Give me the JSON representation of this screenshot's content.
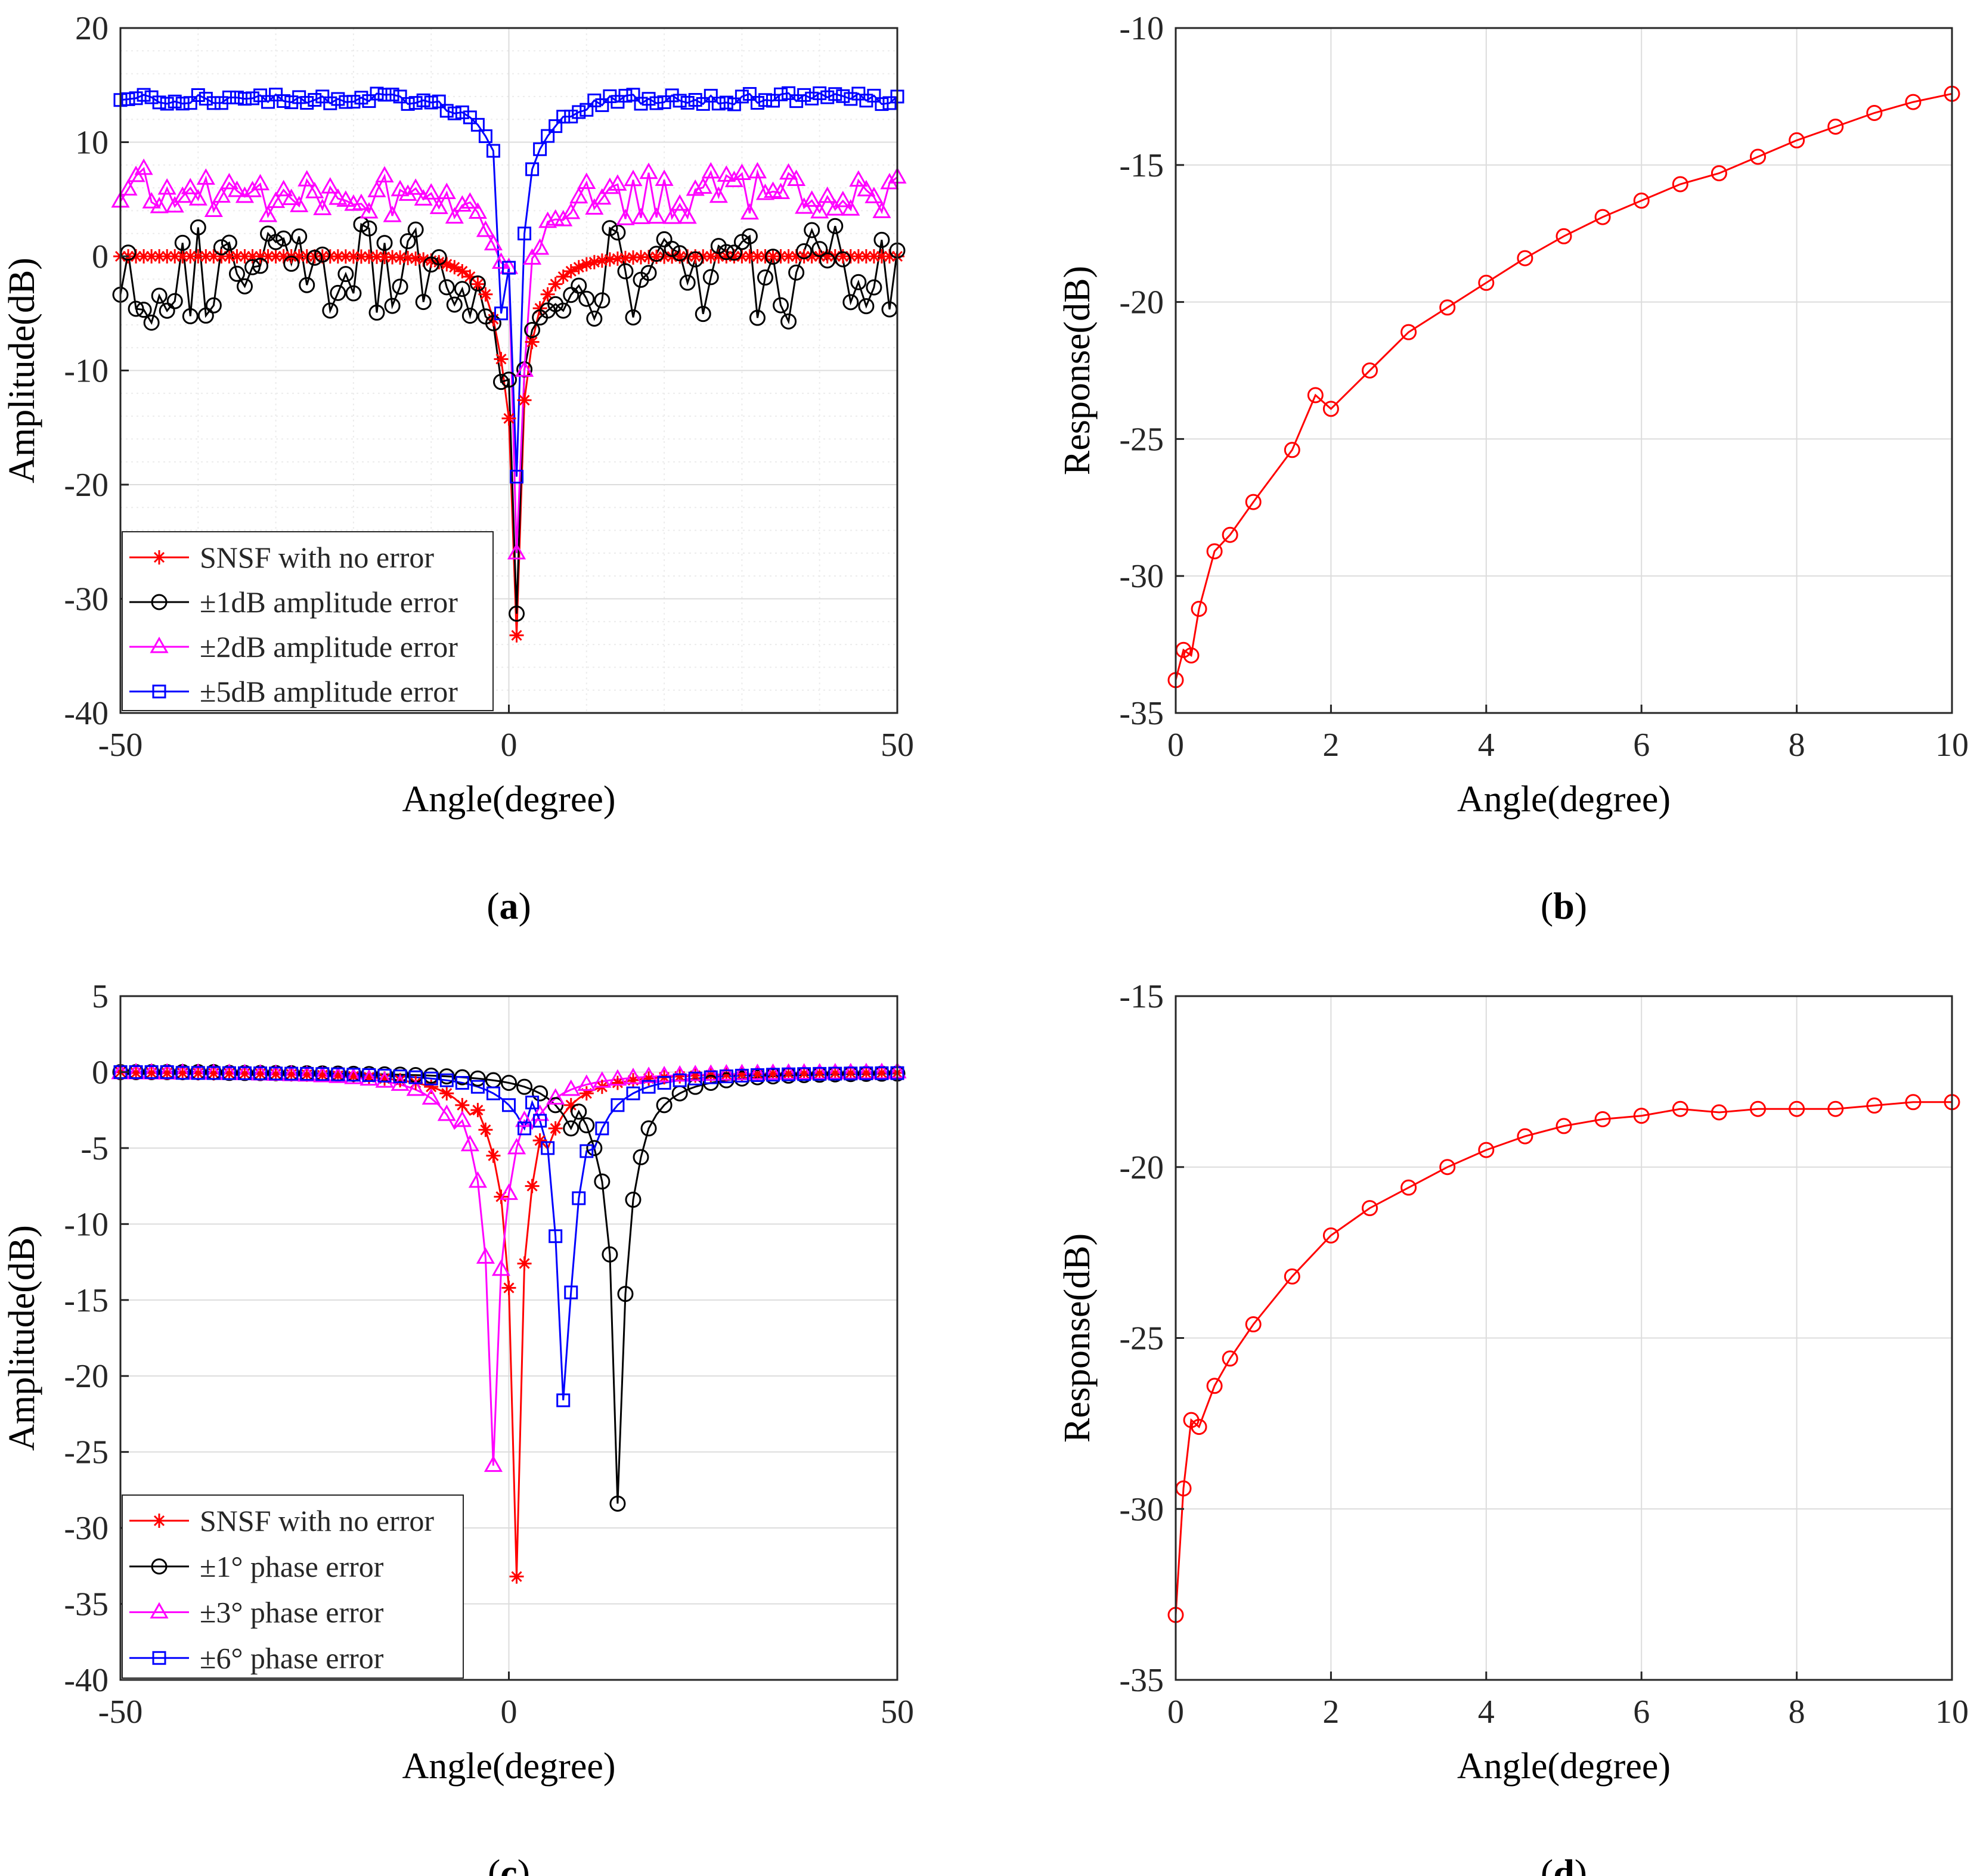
{
  "chart_data": [
    {
      "panel": "a",
      "caption": "(a)",
      "caption_letter": "a",
      "type": "line",
      "xlabel": "Angle(degree)",
      "ylabel": "Amplitude(dB)",
      "xlim": [
        -50,
        50
      ],
      "ylim": [
        -40,
        20
      ],
      "xticks": [
        -50,
        0,
        50
      ],
      "yticks": [
        20,
        10,
        0,
        -10,
        -20,
        -30,
        -40
      ],
      "grid": true,
      "minor_grid": true,
      "legend_position": "bottom-left",
      "series": [
        {
          "name": "SNSF with no error",
          "color": "#ff0000",
          "marker": "star",
          "profile": "null",
          "null_center": 1,
          "null_depth": -33.2,
          "baseline": 0,
          "noise": 0,
          "x_points": [
            -2,
            -1,
            0,
            1,
            2,
            3
          ],
          "y_points": [
            -5.5,
            -9.0,
            -14.2,
            -33.2,
            -12.6,
            -7.5
          ]
        },
        {
          "name": "±1dB amplitude error",
          "color": "#000000",
          "marker": "circle",
          "profile": "null",
          "null_center": 1,
          "null_depth": -31.3,
          "baseline": -1.5,
          "noise": 4.5,
          "x_points": [
            -1,
            0,
            1,
            2
          ],
          "y_points": [
            -11.0,
            -10.8,
            -31.3,
            -9.9
          ]
        },
        {
          "name": "±2dB amplitude error",
          "color": "#ff00ff",
          "marker": "triangle",
          "profile": "null",
          "null_center": 1,
          "null_depth": -26.0,
          "baseline": 5.5,
          "noise": 2.2,
          "x_points": [
            0,
            1,
            2
          ],
          "y_points": [
            -1.0,
            -26.0,
            -10.0
          ]
        },
        {
          "name": "±5dB amplitude error",
          "color": "#0000ff",
          "marker": "square",
          "profile": "null",
          "null_center": 1,
          "null_depth": -19.3,
          "baseline": 13.8,
          "noise": 0.5,
          "x_points": [
            -1,
            0,
            1,
            2
          ],
          "y_points": [
            -5.0,
            -1.0,
            -19.3,
            2.0
          ]
        }
      ]
    },
    {
      "panel": "b",
      "caption": "(b)",
      "caption_letter": "b",
      "type": "line",
      "xlabel": "Angle(degree)",
      "ylabel": "Response(dB)",
      "xlim": [
        0,
        10
      ],
      "ylim": [
        -35,
        -10
      ],
      "xticks": [
        0,
        2,
        4,
        6,
        8,
        10
      ],
      "yticks": [
        -10,
        -15,
        -20,
        -25,
        -30,
        -35
      ],
      "grid": true,
      "minor_grid": false,
      "series": [
        {
          "name": "response",
          "color": "#ff0000",
          "marker": "circle",
          "x": [
            0,
            0.1,
            0.2,
            0.3,
            0.5,
            0.7,
            1,
            1.5,
            1.8,
            2,
            2.5,
            3,
            3.5,
            4,
            4.5,
            5,
            5.5,
            6,
            6.5,
            7,
            7.5,
            8,
            8.5,
            9,
            9.5,
            10
          ],
          "y": [
            -33.8,
            -32.7,
            -32.9,
            -31.2,
            -29.1,
            -28.5,
            -27.3,
            -25.4,
            -23.4,
            -23.9,
            -22.5,
            -21.1,
            -20.2,
            -19.3,
            -18.4,
            -17.6,
            -16.9,
            -16.3,
            -15.7,
            -15.3,
            -14.7,
            -14.1,
            -13.6,
            -13.1,
            -12.7,
            -12.4
          ]
        }
      ]
    },
    {
      "panel": "c",
      "caption": "(c)",
      "caption_letter": "c",
      "type": "line",
      "xlabel": "Angle(degree)",
      "ylabel": "Amplitude(dB)",
      "xlim": [
        -50,
        50
      ],
      "ylim": [
        -40,
        5
      ],
      "xticks": [
        -50,
        0,
        50
      ],
      "yticks": [
        5,
        0,
        -5,
        -10,
        -15,
        -20,
        -25,
        -30,
        -35,
        -40
      ],
      "grid": true,
      "minor_grid": false,
      "legend_position": "bottom-left",
      "series": [
        {
          "name": "SNSF with no error",
          "color": "#ff0000",
          "marker": "star",
          "profile": "notch",
          "null_center": 1,
          "null_depth": -33.2,
          "baseline": 0,
          "x_points": [
            -4,
            -3,
            -2,
            -1,
            0,
            1,
            2,
            3,
            4
          ],
          "y_points": [
            -2.5,
            -3.8,
            -5.5,
            -8.2,
            -14.2,
            -33.2,
            -12.6,
            -7.5,
            -4.5
          ]
        },
        {
          "name": "±1° phase error",
          "color": "#000000",
          "marker": "circle",
          "profile": "notch",
          "null_center": 13,
          "null_depth": -28.4,
          "baseline": 0,
          "x_points": [
            9,
            10,
            11,
            12,
            13,
            14,
            15,
            16,
            17
          ],
          "y_points": [
            -2.6,
            -3.5,
            -5.0,
            -7.2,
            -12.0,
            -28.4,
            -14.6,
            -8.4,
            -5.6
          ]
        },
        {
          "name": "±3° phase error",
          "color": "#ff00ff",
          "marker": "triangle",
          "profile": "notch",
          "null_center": -2,
          "null_depth": -25.9,
          "baseline": 0,
          "x_points": [
            -6,
            -5,
            -4,
            -3,
            -2,
            -1,
            0,
            1,
            2
          ],
          "y_points": [
            -3.2,
            -4.8,
            -7.2,
            -12.2,
            -25.9,
            -13.0,
            -8.0,
            -5.0,
            -3.2
          ]
        },
        {
          "name": "±6° phase error",
          "color": "#0000ff",
          "marker": "square",
          "profile": "notch",
          "null_center": 7,
          "null_depth": -21.6,
          "baseline": 0,
          "x_points": [
            3,
            4,
            5,
            6,
            7,
            8,
            9,
            10
          ],
          "y_points": [
            -2.0,
            -3.2,
            -5.0,
            -10.8,
            -21.6,
            -14.5,
            -8.3,
            -5.2
          ]
        }
      ]
    },
    {
      "panel": "d",
      "caption": "(d)",
      "caption_letter": "d",
      "type": "line",
      "xlabel": "Angle(degree)",
      "ylabel": "Response(dB)",
      "xlim": [
        0,
        10
      ],
      "ylim": [
        -35,
        -15
      ],
      "xticks": [
        0,
        2,
        4,
        6,
        8,
        10
      ],
      "yticks": [
        -15,
        -20,
        -25,
        -30,
        -35
      ],
      "grid": true,
      "minor_grid": false,
      "series": [
        {
          "name": "response",
          "color": "#ff0000",
          "marker": "circle",
          "x": [
            0,
            0.1,
            0.2,
            0.3,
            0.5,
            0.7,
            1,
            1.5,
            2,
            2.5,
            3,
            3.5,
            4,
            4.5,
            5,
            5.5,
            6,
            6.5,
            7,
            7.5,
            8,
            8.5,
            9,
            9.5,
            10
          ],
          "y": [
            -33.1,
            -29.4,
            -27.4,
            -27.6,
            -26.4,
            -25.6,
            -24.6,
            -23.2,
            -22.0,
            -21.2,
            -20.6,
            -20.0,
            -19.5,
            -19.1,
            -18.8,
            -18.6,
            -18.5,
            -18.3,
            -18.4,
            -18.3,
            -18.3,
            -18.3,
            -18.2,
            -18.1,
            -18.1
          ]
        }
      ]
    }
  ]
}
